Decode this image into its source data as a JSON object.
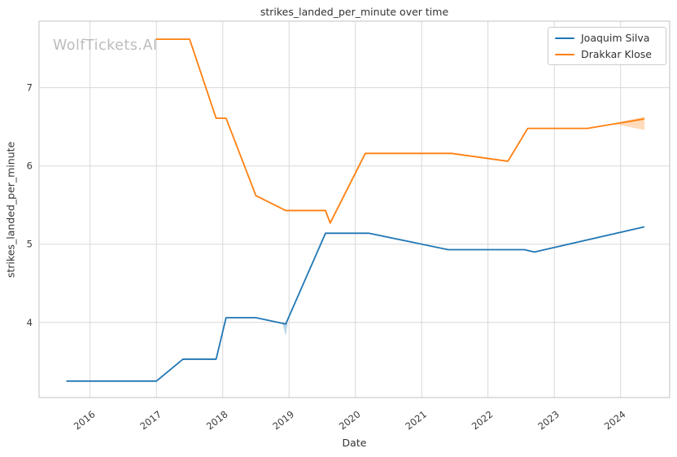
{
  "watermark": {
    "text": "WolfTickets.AI",
    "color": "#bcbcbc"
  },
  "chart_data": {
    "type": "line",
    "title": "strikes_landed_per_minute over time",
    "xlabel": "Date",
    "ylabel": "strikes_landed_per_minute",
    "xlim": [
      2015.23,
      2024.74
    ],
    "ylim": [
      3.04,
      7.85
    ],
    "xticks": [
      2016,
      2017,
      2018,
      2019,
      2020,
      2021,
      2022,
      2023,
      2024
    ],
    "yticks": [
      4,
      5,
      6,
      7
    ],
    "grid": true,
    "grid_color": "#d8d8d8",
    "border_color": "#cbcbcb",
    "legend_position": "upper right",
    "series": [
      {
        "name": "Joaquim Silva",
        "color": "#1f77b4",
        "x": [
          2015.65,
          2017.0,
          2017.4,
          2017.9,
          2018.05,
          2018.5,
          2018.95,
          2019.55,
          2020.2,
          2021.4,
          2022.55,
          2022.7,
          2024.35
        ],
        "y": [
          3.25,
          3.25,
          3.53,
          3.53,
          4.06,
          4.06,
          3.98,
          5.14,
          5.14,
          4.93,
          4.93,
          4.9,
          5.22
        ]
      },
      {
        "name": "Drakkar Klose",
        "color": "#ff7f0e",
        "x": [
          2017.0,
          2017.5,
          2017.9,
          2018.05,
          2018.5,
          2018.95,
          2019.55,
          2019.62,
          2020.15,
          2021.45,
          2022.3,
          2022.6,
          2023.5,
          2024.35
        ],
        "y": [
          7.62,
          7.62,
          6.61,
          6.61,
          5.62,
          5.43,
          5.43,
          5.27,
          6.16,
          6.16,
          6.06,
          6.48,
          6.48,
          6.6
        ]
      }
    ],
    "uncertainty_bands": [
      {
        "series": "Joaquim Silva",
        "color": "#1f77b4",
        "opacity": 0.3,
        "polygon": [
          [
            2018.9,
            3.99
          ],
          [
            2018.98,
            3.99
          ],
          [
            2018.95,
            3.83
          ]
        ]
      },
      {
        "series": "Drakkar Klose",
        "color": "#ff7f0e",
        "opacity": 0.28,
        "polygon": [
          [
            2023.88,
            6.54
          ],
          [
            2024.36,
            6.63
          ],
          [
            2024.36,
            6.46
          ]
        ]
      }
    ]
  }
}
